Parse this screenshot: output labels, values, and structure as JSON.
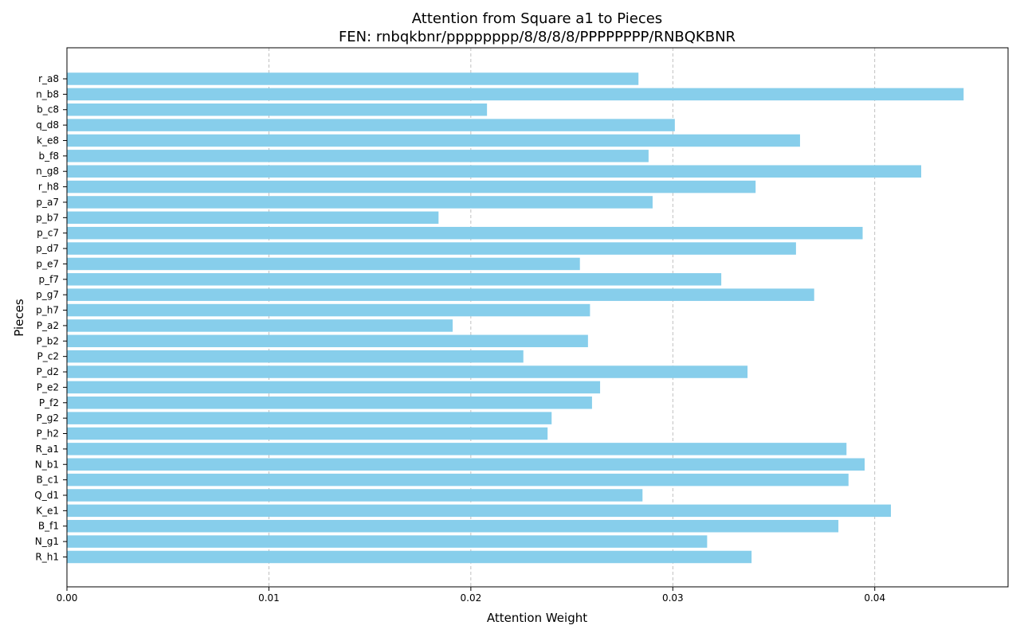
{
  "chart_data": {
    "type": "bar",
    "orientation": "horizontal",
    "title": "Attention from Square a1 to Pieces",
    "subtitle": "FEN: rnbqkbnr/pppppppp/8/8/8/8/PPPPPPPP/RNBQKBNR",
    "xlabel": "Attention Weight",
    "ylabel": "Pieces",
    "xlim": [
      0,
      0.0466
    ],
    "xticks": [
      0.0,
      0.01,
      0.02,
      0.03,
      0.04
    ],
    "xtick_labels": [
      "0.00",
      "0.01",
      "0.02",
      "0.03",
      "0.04"
    ],
    "grid": "x-axis dashed",
    "bar_color": "#87CEEB",
    "categories": [
      "r_a8",
      "n_b8",
      "b_c8",
      "q_d8",
      "k_e8",
      "b_f8",
      "n_g8",
      "r_h8",
      "p_a7",
      "p_b7",
      "p_c7",
      "p_d7",
      "p_e7",
      "p_f7",
      "p_g7",
      "p_h7",
      "P_a2",
      "P_b2",
      "P_c2",
      "P_d2",
      "P_e2",
      "P_f2",
      "P_g2",
      "P_h2",
      "R_a1",
      "N_b1",
      "B_c1",
      "Q_d1",
      "K_e1",
      "B_f1",
      "N_g1",
      "R_h1"
    ],
    "values": [
      0.0283,
      0.0444,
      0.0208,
      0.0301,
      0.0363,
      0.0288,
      0.0423,
      0.0341,
      0.029,
      0.0184,
      0.0394,
      0.0361,
      0.0254,
      0.0324,
      0.037,
      0.0259,
      0.0191,
      0.0258,
      0.0226,
      0.0337,
      0.0264,
      0.026,
      0.024,
      0.0238,
      0.0386,
      0.0395,
      0.0387,
      0.0285,
      0.0408,
      0.0382,
      0.0317,
      0.0339
    ]
  }
}
